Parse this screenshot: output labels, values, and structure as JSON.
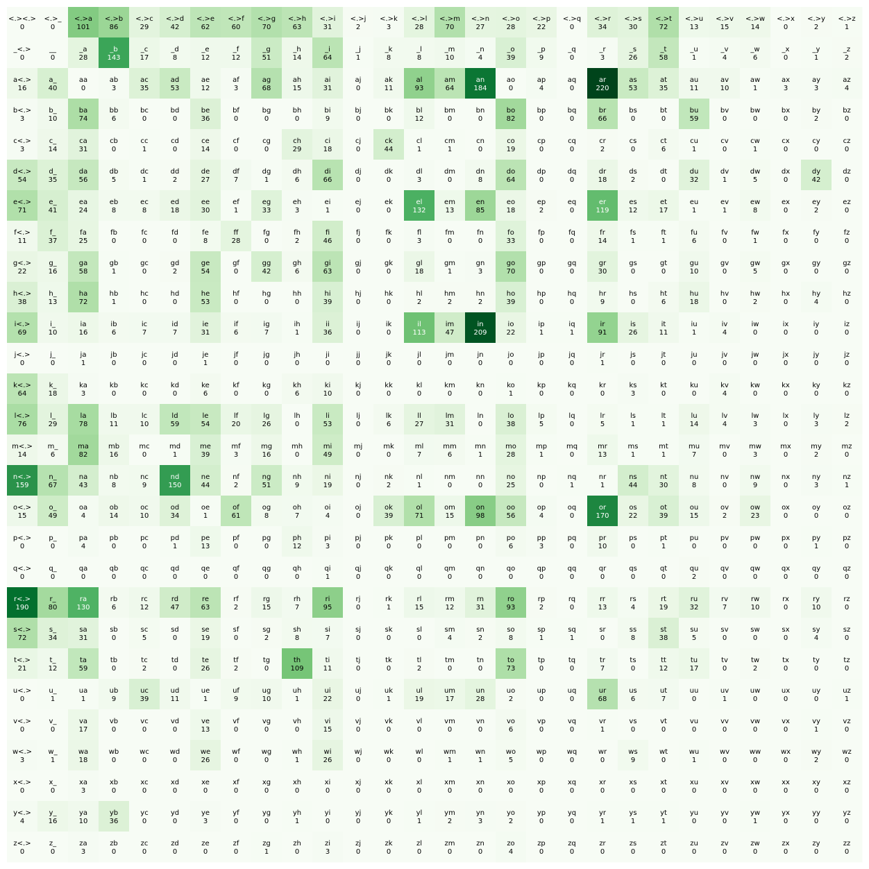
{
  "chart_data": {
    "type": "heatmap",
    "colormap": "Greens",
    "color_range": [
      0,
      220
    ],
    "row_labels": [
      "<.>",
      "_",
      "a",
      "b",
      "c",
      "d",
      "e",
      "f",
      "g",
      "h",
      "i",
      "j",
      "k",
      "l",
      "m",
      "n",
      "o",
      "p",
      "q",
      "r",
      "s",
      "t",
      "u",
      "v",
      "w",
      "x",
      "y",
      "z"
    ],
    "col_labels": [
      "<.>",
      "_",
      "a",
      "b",
      "c",
      "d",
      "e",
      "f",
      "g",
      "h",
      "i",
      "j",
      "k",
      "l",
      "m",
      "n",
      "o",
      "p",
      "q",
      "r",
      "s",
      "t",
      "u",
      "v",
      "w",
      "x",
      "y",
      "z"
    ],
    "values": [
      [
        0,
        0,
        101,
        86,
        29,
        42,
        62,
        60,
        70,
        63,
        31,
        2,
        3,
        28,
        70,
        27,
        28,
        22,
        0,
        34,
        30,
        72,
        13,
        15,
        14,
        0,
        2,
        1
      ],
      [
        0,
        0,
        28,
        143,
        17,
        8,
        12,
        12,
        51,
        14,
        64,
        1,
        8,
        8,
        10,
        4,
        39,
        9,
        0,
        3,
        26,
        58,
        1,
        4,
        6,
        0,
        1,
        2
      ],
      [
        16,
        40,
        0,
        3,
        35,
        53,
        12,
        3,
        68,
        15,
        31,
        0,
        11,
        93,
        64,
        184,
        0,
        4,
        0,
        220,
        53,
        35,
        11,
        10,
        1,
        3,
        3,
        4
      ],
      [
        3,
        10,
        74,
        6,
        0,
        0,
        36,
        0,
        0,
        0,
        9,
        0,
        0,
        12,
        0,
        0,
        82,
        0,
        0,
        66,
        0,
        0,
        59,
        0,
        0,
        0,
        2,
        0
      ],
      [
        3,
        14,
        31,
        0,
        1,
        0,
        14,
        0,
        0,
        29,
        18,
        0,
        44,
        1,
        1,
        0,
        19,
        0,
        0,
        2,
        0,
        6,
        1,
        0,
        1,
        0,
        0,
        0
      ],
      [
        54,
        35,
        56,
        5,
        1,
        2,
        27,
        7,
        1,
        6,
        66,
        0,
        0,
        3,
        0,
        8,
        64,
        0,
        0,
        18,
        2,
        0,
        32,
        1,
        5,
        0,
        42,
        0
      ],
      [
        71,
        41,
        24,
        8,
        8,
        18,
        30,
        1,
        33,
        3,
        1,
        0,
        0,
        132,
        13,
        85,
        18,
        2,
        0,
        119,
        12,
        17,
        1,
        1,
        8,
        0,
        2,
        0
      ],
      [
        11,
        37,
        25,
        0,
        0,
        0,
        8,
        28,
        0,
        2,
        46,
        0,
        0,
        3,
        0,
        0,
        33,
        0,
        0,
        14,
        1,
        1,
        6,
        0,
        1,
        0,
        0,
        0
      ],
      [
        22,
        16,
        58,
        1,
        0,
        2,
        54,
        0,
        42,
        6,
        63,
        0,
        0,
        18,
        1,
        3,
        70,
        0,
        0,
        30,
        0,
        0,
        10,
        0,
        5,
        0,
        0,
        0
      ],
      [
        38,
        13,
        72,
        1,
        0,
        0,
        53,
        0,
        0,
        0,
        39,
        0,
        0,
        2,
        2,
        2,
        39,
        0,
        0,
        9,
        0,
        6,
        18,
        0,
        2,
        0,
        4,
        0
      ],
      [
        69,
        10,
        16,
        6,
        7,
        7,
        31,
        6,
        7,
        1,
        36,
        0,
        0,
        113,
        47,
        209,
        22,
        1,
        1,
        91,
        26,
        11,
        1,
        4,
        0,
        0,
        0,
        0
      ],
      [
        0,
        0,
        1,
        0,
        0,
        0,
        1,
        0,
        0,
        0,
        0,
        0,
        0,
        0,
        0,
        0,
        0,
        0,
        0,
        1,
        0,
        0,
        0,
        0,
        0,
        0,
        0,
        0
      ],
      [
        64,
        18,
        3,
        0,
        0,
        0,
        6,
        0,
        0,
        6,
        10,
        0,
        0,
        0,
        0,
        0,
        1,
        0,
        0,
        0,
        3,
        0,
        0,
        4,
        0,
        0,
        0,
        0
      ],
      [
        76,
        29,
        78,
        11,
        10,
        59,
        54,
        20,
        26,
        0,
        53,
        0,
        6,
        27,
        31,
        0,
        38,
        5,
        0,
        5,
        1,
        1,
        14,
        4,
        3,
        0,
        3,
        2
      ],
      [
        14,
        6,
        82,
        16,
        0,
        1,
        39,
        3,
        16,
        0,
        49,
        0,
        0,
        7,
        6,
        1,
        28,
        1,
        0,
        13,
        1,
        1,
        7,
        0,
        3,
        0,
        2,
        0
      ],
      [
        159,
        67,
        43,
        8,
        9,
        150,
        44,
        2,
        51,
        9,
        19,
        0,
        2,
        1,
        0,
        0,
        25,
        0,
        1,
        1,
        44,
        30,
        8,
        0,
        9,
        0,
        3,
        1
      ],
      [
        15,
        49,
        4,
        14,
        10,
        34,
        1,
        61,
        8,
        7,
        4,
        0,
        39,
        71,
        15,
        98,
        56,
        4,
        0,
        170,
        22,
        39,
        15,
        2,
        23,
        0,
        0,
        0
      ],
      [
        0,
        0,
        4,
        0,
        0,
        1,
        13,
        0,
        0,
        12,
        3,
        0,
        0,
        0,
        0,
        0,
        6,
        3,
        0,
        10,
        0,
        1,
        0,
        0,
        0,
        0,
        1,
        0
      ],
      [
        0,
        0,
        0,
        0,
        0,
        0,
        0,
        0,
        0,
        0,
        1,
        0,
        0,
        0,
        0,
        0,
        0,
        0,
        0,
        0,
        0,
        0,
        2,
        0,
        0,
        0,
        0,
        0
      ],
      [
        190,
        80,
        130,
        6,
        12,
        47,
        63,
        2,
        15,
        7,
        95,
        0,
        1,
        15,
        12,
        31,
        93,
        2,
        0,
        13,
        4,
        19,
        32,
        7,
        10,
        0,
        10,
        0
      ],
      [
        72,
        34,
        31,
        0,
        5,
        0,
        19,
        0,
        2,
        8,
        7,
        0,
        0,
        0,
        4,
        2,
        8,
        1,
        1,
        0,
        8,
        38,
        5,
        0,
        0,
        0,
        4,
        0
      ],
      [
        21,
        12,
        59,
        0,
        2,
        0,
        26,
        2,
        0,
        109,
        11,
        0,
        0,
        2,
        0,
        0,
        73,
        0,
        0,
        7,
        0,
        12,
        17,
        0,
        2,
        0,
        0,
        0
      ],
      [
        0,
        1,
        1,
        9,
        39,
        11,
        1,
        9,
        10,
        1,
        22,
        0,
        1,
        19,
        17,
        28,
        2,
        0,
        0,
        68,
        6,
        7,
        0,
        1,
        0,
        0,
        0,
        1
      ],
      [
        0,
        0,
        17,
        0,
        0,
        0,
        13,
        0,
        0,
        0,
        15,
        0,
        0,
        0,
        0,
        0,
        6,
        0,
        0,
        1,
        0,
        0,
        0,
        0,
        0,
        0,
        1,
        0
      ],
      [
        3,
        1,
        18,
        0,
        0,
        0,
        26,
        0,
        0,
        1,
        26,
        0,
        0,
        0,
        1,
        1,
        5,
        0,
        0,
        0,
        9,
        0,
        1,
        0,
        0,
        0,
        2,
        0
      ],
      [
        0,
        0,
        3,
        0,
        0,
        0,
        0,
        0,
        0,
        0,
        0,
        0,
        0,
        0,
        0,
        0,
        0,
        0,
        0,
        0,
        0,
        0,
        0,
        0,
        0,
        0,
        0,
        0
      ],
      [
        4,
        16,
        10,
        36,
        0,
        0,
        3,
        0,
        0,
        1,
        0,
        0,
        0,
        1,
        2,
        3,
        2,
        0,
        0,
        1,
        1,
        1,
        0,
        0,
        1,
        0,
        0,
        0
      ],
      [
        0,
        0,
        3,
        0,
        0,
        0,
        0,
        0,
        1,
        0,
        3,
        0,
        0,
        0,
        0,
        0,
        4,
        0,
        0,
        0,
        0,
        0,
        0,
        0,
        0,
        0,
        0,
        0
      ]
    ],
    "title": "",
    "xlabel": "",
    "ylabel": "",
    "grid": false,
    "legend": "none"
  }
}
